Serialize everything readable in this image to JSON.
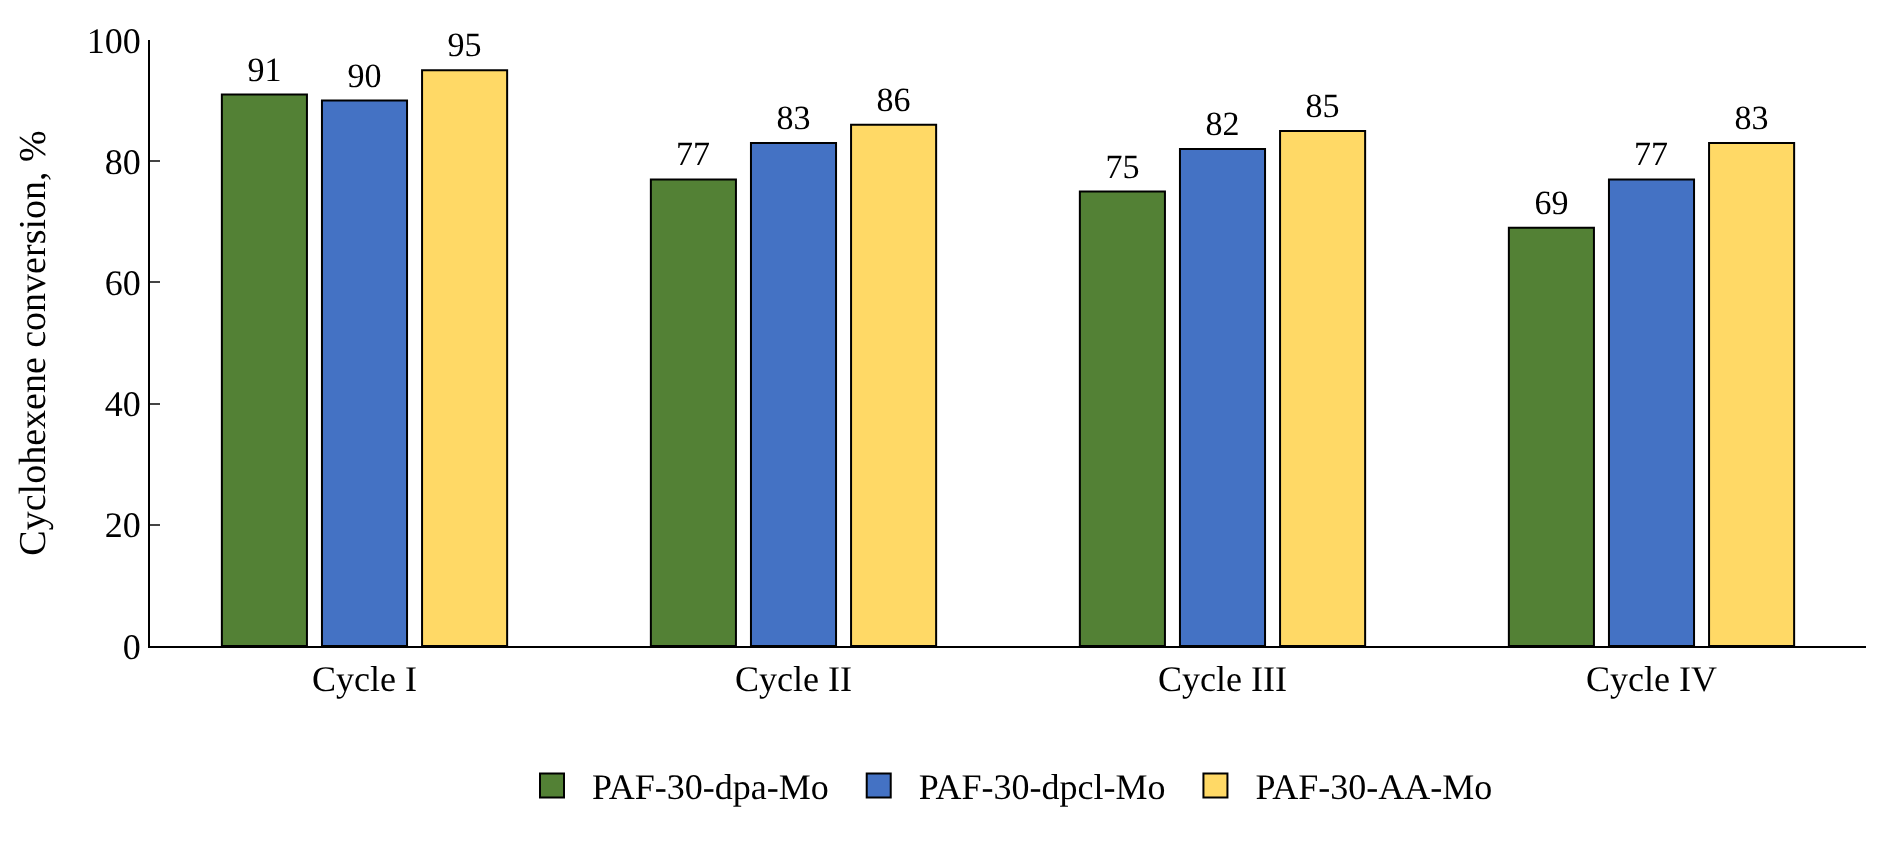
{
  "chart_data": {
    "type": "bar",
    "ylabel": "Cyclohexene conversion, %",
    "categories": [
      "Cycle I",
      "Cycle II",
      "Cycle III",
      "Cycle IV"
    ],
    "series": [
      {
        "name": "PAF-30-dpa-Mo",
        "color": "#538135",
        "values": [
          91,
          77,
          75,
          69
        ]
      },
      {
        "name": "PAF-30-dpcl-Mo",
        "color": "#4472c4",
        "values": [
          90,
          83,
          82,
          77
        ]
      },
      {
        "name": "PAF-30-AA-Mo",
        "color": "#ffd966",
        "values": [
          95,
          86,
          85,
          83
        ]
      }
    ],
    "ylim": [
      0,
      100
    ],
    "yticks": [
      0,
      20,
      40,
      60,
      80,
      100
    ],
    "data_labels": true,
    "legend": "bottom"
  }
}
